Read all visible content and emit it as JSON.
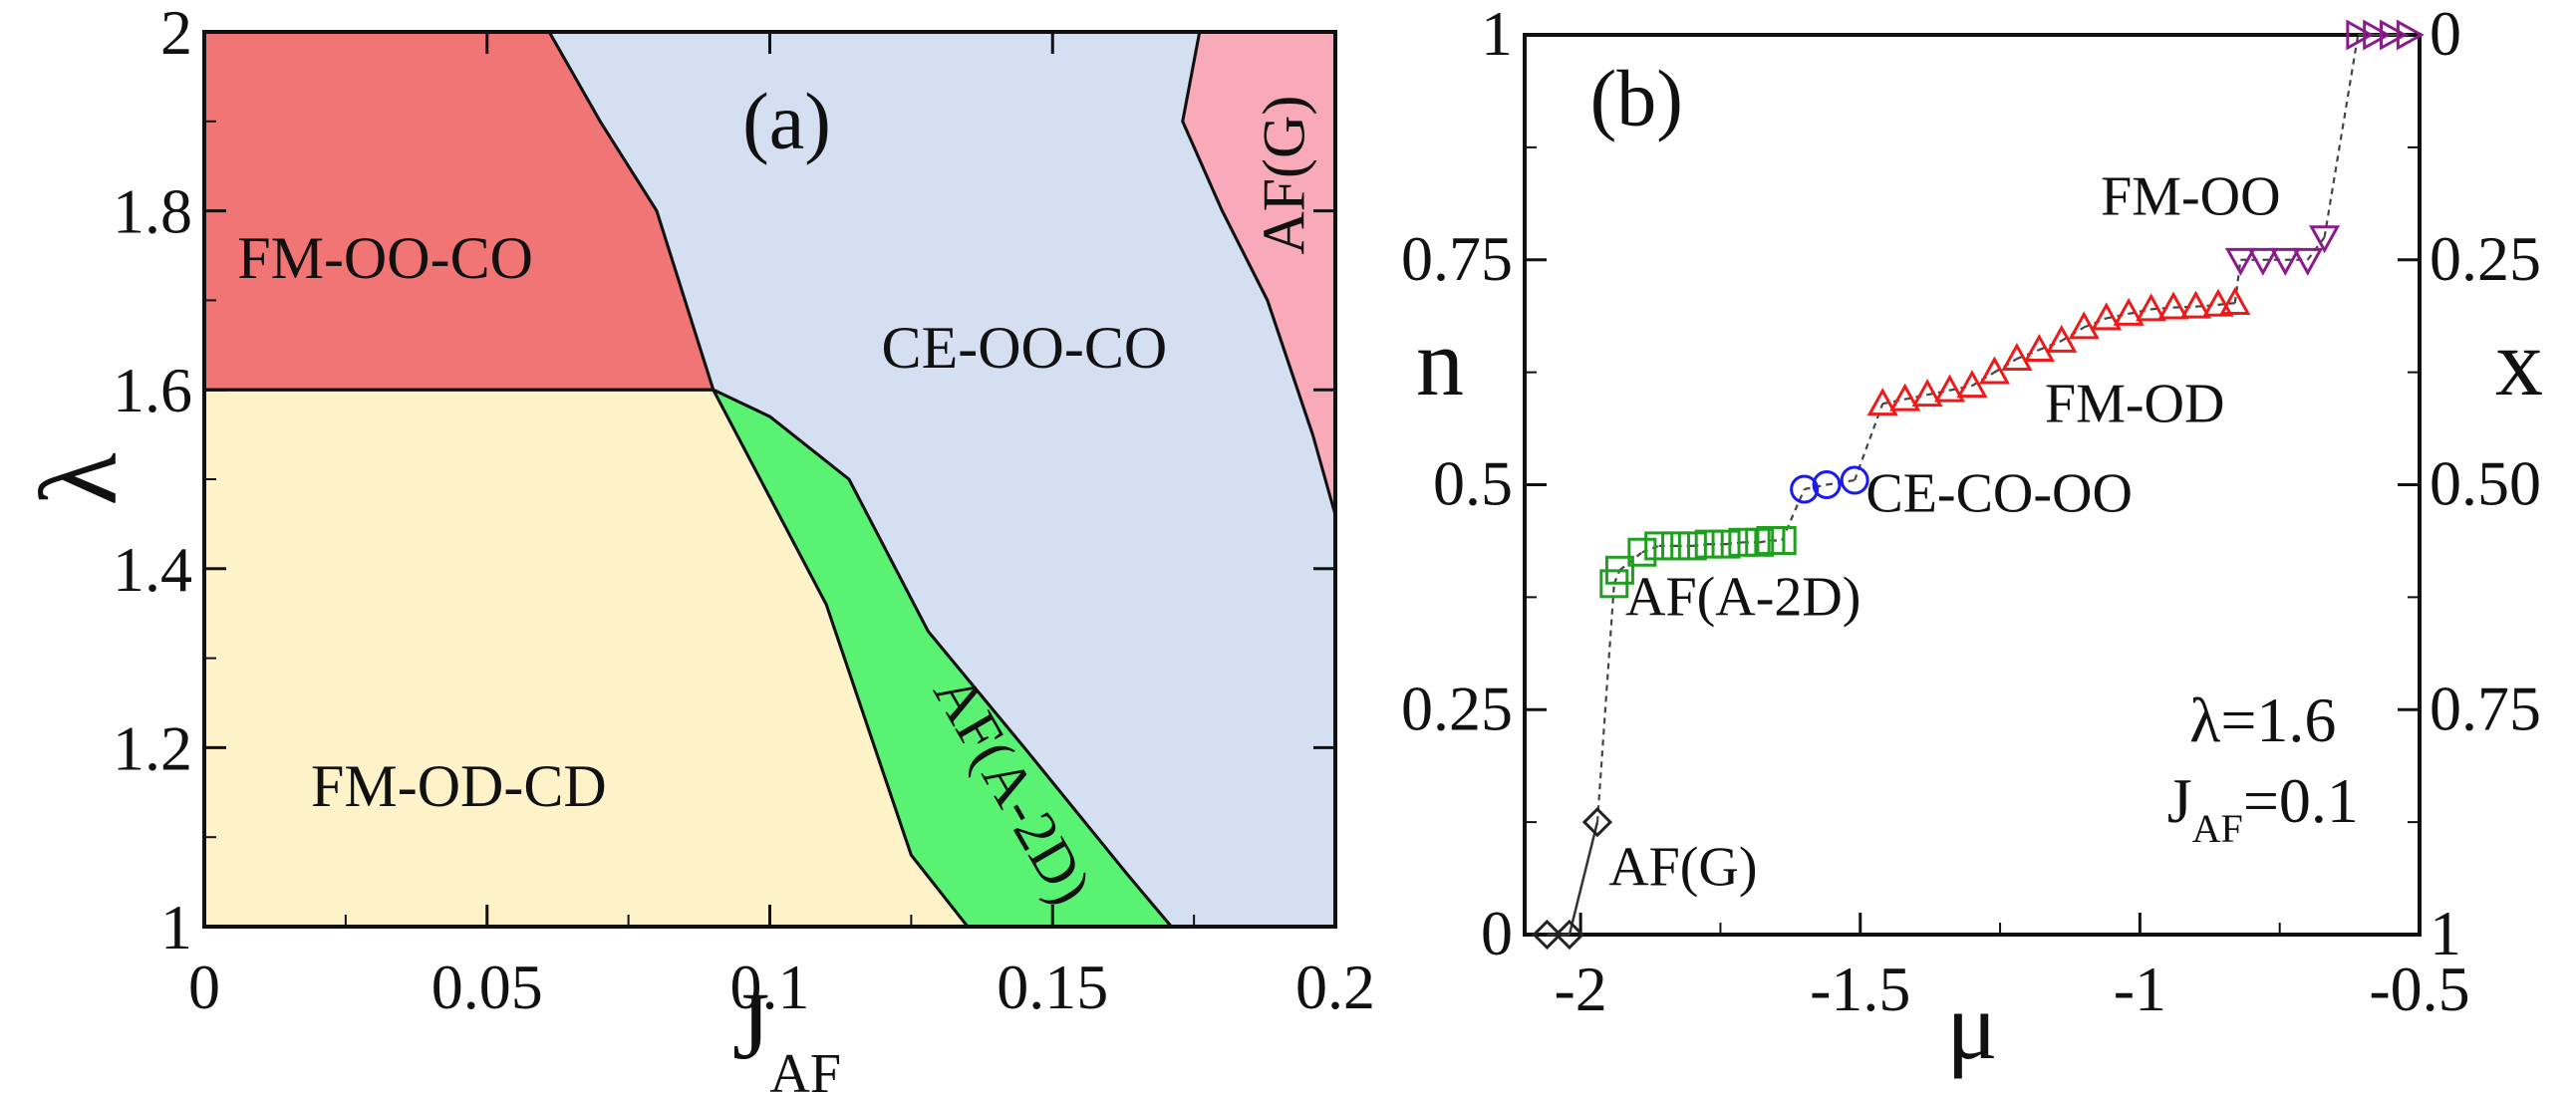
{
  "chart_data": [
    {
      "type": "phase-diagram",
      "panel_label": "(a)",
      "xlabel": "J",
      "xlabel_sub": "AF",
      "ylabel": "λ",
      "xlim": [
        0,
        0.2
      ],
      "ylim": [
        1,
        2
      ],
      "x_ticks": [
        0,
        0.05,
        0.1,
        0.15,
        0.2
      ],
      "x_tick_labels": [
        "0",
        "0.05",
        "0.1",
        "0.15",
        "0.2"
      ],
      "y_ticks": [
        1,
        1.2,
        1.4,
        1.6,
        1.8,
        2
      ],
      "y_tick_labels": [
        "1",
        "1.2",
        "1.4",
        "1.6",
        "1.8",
        "2"
      ],
      "regions": [
        {
          "name": "FM-OO-CO",
          "color": "#f27575",
          "polygon": [
            [
              0,
              1.6
            ],
            [
              0,
              2
            ],
            [
              0.061,
              2
            ],
            [
              0.07,
              1.9
            ],
            [
              0.08,
              1.8
            ],
            [
              0.09,
              1.6
            ]
          ],
          "label_pos": [
            0.032,
            1.74
          ]
        },
        {
          "name": "CE-OO-CO",
          "color": "#d4e0f2",
          "polygon": [
            [
              0.061,
              2
            ],
            [
              0.176,
              2
            ],
            [
              0.173,
              1.9
            ],
            [
              0.18,
              1.8
            ],
            [
              0.188,
              1.7
            ],
            [
              0.196,
              1.55
            ],
            [
              0.202,
              1.46
            ],
            [
              0.2,
              1
            ],
            [
              0.171,
              1
            ],
            [
              0.163,
              1.06
            ],
            [
              0.145,
              1.2
            ],
            [
              0.128,
              1.33
            ],
            [
              0.114,
              1.5
            ],
            [
              0.1,
              1.57
            ],
            [
              0.09,
              1.6
            ],
            [
              0.08,
              1.8
            ],
            [
              0.07,
              1.9
            ]
          ],
          "label_pos": [
            0.145,
            1.64
          ]
        },
        {
          "name": "AF(G)",
          "color": "#f8aab8",
          "polygon": [
            [
              0.176,
              2
            ],
            [
              0.2,
              2
            ],
            [
              0.2,
              1.46
            ],
            [
              0.196,
              1.55
            ],
            [
              0.188,
              1.7
            ],
            [
              0.18,
              1.8
            ],
            [
              0.173,
              1.9
            ]
          ],
          "label_pos": [
            0.192,
            1.84
          ],
          "label_rotation": -90
        },
        {
          "name": "FM-OD-CD",
          "color": "#fdf2c8",
          "polygon": [
            [
              0,
              1
            ],
            [
              0,
              1.6
            ],
            [
              0.09,
              1.6
            ],
            [
              0.1,
              1.48
            ],
            [
              0.11,
              1.36
            ],
            [
              0.125,
              1.08
            ],
            [
              0.135,
              1
            ]
          ],
          "label_pos": [
            0.045,
            1.15
          ]
        },
        {
          "name": "AF(A-2D)",
          "color": "#5af273",
          "polygon": [
            [
              0.09,
              1.6
            ],
            [
              0.1,
              1.57
            ],
            [
              0.114,
              1.5
            ],
            [
              0.128,
              1.33
            ],
            [
              0.145,
              1.2
            ],
            [
              0.163,
              1.06
            ],
            [
              0.171,
              1
            ],
            [
              0.135,
              1
            ],
            [
              0.125,
              1.08
            ],
            [
              0.11,
              1.36
            ],
            [
              0.1,
              1.48
            ]
          ],
          "label_pos": [
            0.142,
            1.15
          ],
          "label_rotation": 60
        }
      ]
    },
    {
      "type": "scatter",
      "panel_label": "(b)",
      "xlabel": "μ",
      "ylabel": "n",
      "y2label": "x",
      "xlim": [
        -2.1,
        -0.5
      ],
      "ylim": [
        0,
        1
      ],
      "x_ticks": [
        -2,
        -1.5,
        -1,
        -0.5
      ],
      "x_tick_labels": [
        "-2",
        "-1.5",
        "-1",
        "-0.5"
      ],
      "y_ticks": [
        0,
        0.25,
        0.5,
        0.75,
        1
      ],
      "y_tick_labels": [
        "0",
        "0.25",
        "0.5",
        "0.75",
        "1"
      ],
      "y2_tick_labels": [
        "1",
        "0.75",
        "0.50",
        "0.25",
        "0"
      ],
      "annotation_lines": [
        "λ=1.6",
        "J"
      ],
      "annotation_sub": "AF",
      "annotation_tail": "=0.1",
      "series": [
        {
          "name": "AF(G)",
          "marker": "diamond",
          "color": "#222222",
          "line": "solid",
          "x": [
            -2.06,
            -2.02,
            -1.97
          ],
          "y": [
            0,
            0,
            0.125
          ],
          "label_pos": [
            -1.95,
            0.055
          ]
        },
        {
          "name": "AF(A-2D)",
          "marker": "square",
          "color": "#1f9e1f",
          "line": "dashed",
          "x": [
            -1.94,
            -1.93,
            -1.89,
            -1.86,
            -1.83,
            -1.8,
            -1.77,
            -1.74,
            -1.71,
            -1.68,
            -1.66,
            -1.64
          ],
          "y": [
            0.39,
            0.405,
            0.425,
            0.432,
            0.432,
            0.432,
            0.434,
            0.434,
            0.436,
            0.436,
            0.438,
            0.438
          ],
          "label_pos": [
            -1.92,
            0.355
          ]
        },
        {
          "name": "CE-CO-OO",
          "marker": "circle",
          "color": "#1a1aee",
          "line": "dashed",
          "x": [
            -1.6,
            -1.56,
            -1.51
          ],
          "y": [
            0.495,
            0.5,
            0.505
          ],
          "label_pos": [
            -1.49,
            0.47
          ]
        },
        {
          "name": "FM-OD",
          "marker": "triangle-up",
          "color": "#ee1a1a",
          "line": "dashed",
          "x": [
            -1.46,
            -1.42,
            -1.38,
            -1.34,
            -1.3,
            -1.26,
            -1.22,
            -1.18,
            -1.14,
            -1.1,
            -1.06,
            -1.02,
            -0.98,
            -0.94,
            -0.9,
            -0.86,
            -0.83
          ],
          "y": [
            0.59,
            0.595,
            0.6,
            0.605,
            0.61,
            0.625,
            0.64,
            0.65,
            0.66,
            0.675,
            0.685,
            0.69,
            0.695,
            0.697,
            0.698,
            0.7,
            0.702
          ],
          "label_pos": [
            -1.17,
            0.57
          ]
        },
        {
          "name": "FM-OO",
          "marker": "triangle-down",
          "color": "#8b1a8b",
          "line": "dashed",
          "x": [
            -0.82,
            -0.78,
            -0.74,
            -0.7,
            -0.67,
            -0.61,
            -0.58,
            -0.55,
            -0.52
          ],
          "y": [
            0.75,
            0.75,
            0.75,
            0.75,
            0.775,
            1.0,
            1.0,
            1.0,
            1.0
          ],
          "marker_override": {
            "5": "triangle-right",
            "6": "triangle-right",
            "7": "triangle-right",
            "8": "triangle-right"
          },
          "label_pos": [
            -1.07,
            0.8
          ]
        }
      ]
    }
  ]
}
